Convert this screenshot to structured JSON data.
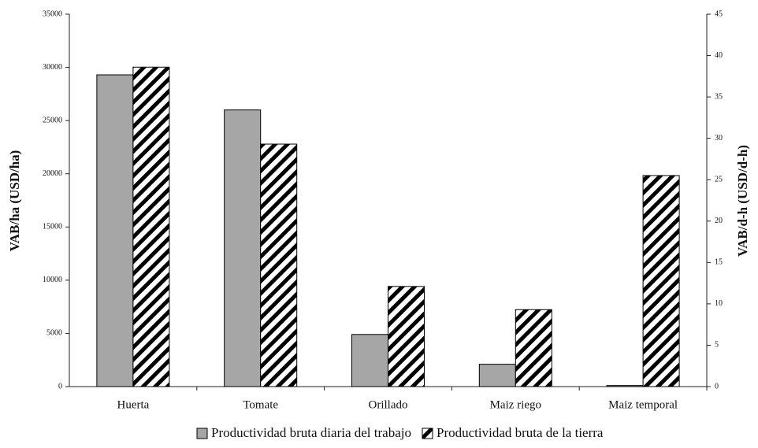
{
  "chart_data": {
    "type": "bar",
    "categories": [
      "Huerta",
      "Tomate",
      "Orillado",
      "Maiz riego",
      "Maiz temporal"
    ],
    "series": [
      {
        "name": "Productividad bruta diaria del trabajo",
        "color": "#a6a6a6",
        "values": [
          29300,
          26000,
          4900,
          2100,
          100
        ]
      },
      {
        "name": "Productividad bruta de la tierra",
        "color": "#000000",
        "axis": "y2",
        "values": [
          38.6,
          29.3,
          12.1,
          9.3,
          25.5
        ]
      }
    ],
    "ylabel": "VAB/ha (USD/ha)",
    "y2label": "VAB/d-h (USD/d-h)",
    "ylim": [
      0,
      35000
    ],
    "yticks": [
      0,
      5000,
      10000,
      15000,
      20000,
      25000,
      30000,
      35000
    ],
    "y2lim": [
      0,
      45
    ],
    "y2ticks": [
      0,
      5,
      10,
      15,
      20,
      25,
      30,
      35,
      40,
      45
    ],
    "legend": "bottom"
  }
}
